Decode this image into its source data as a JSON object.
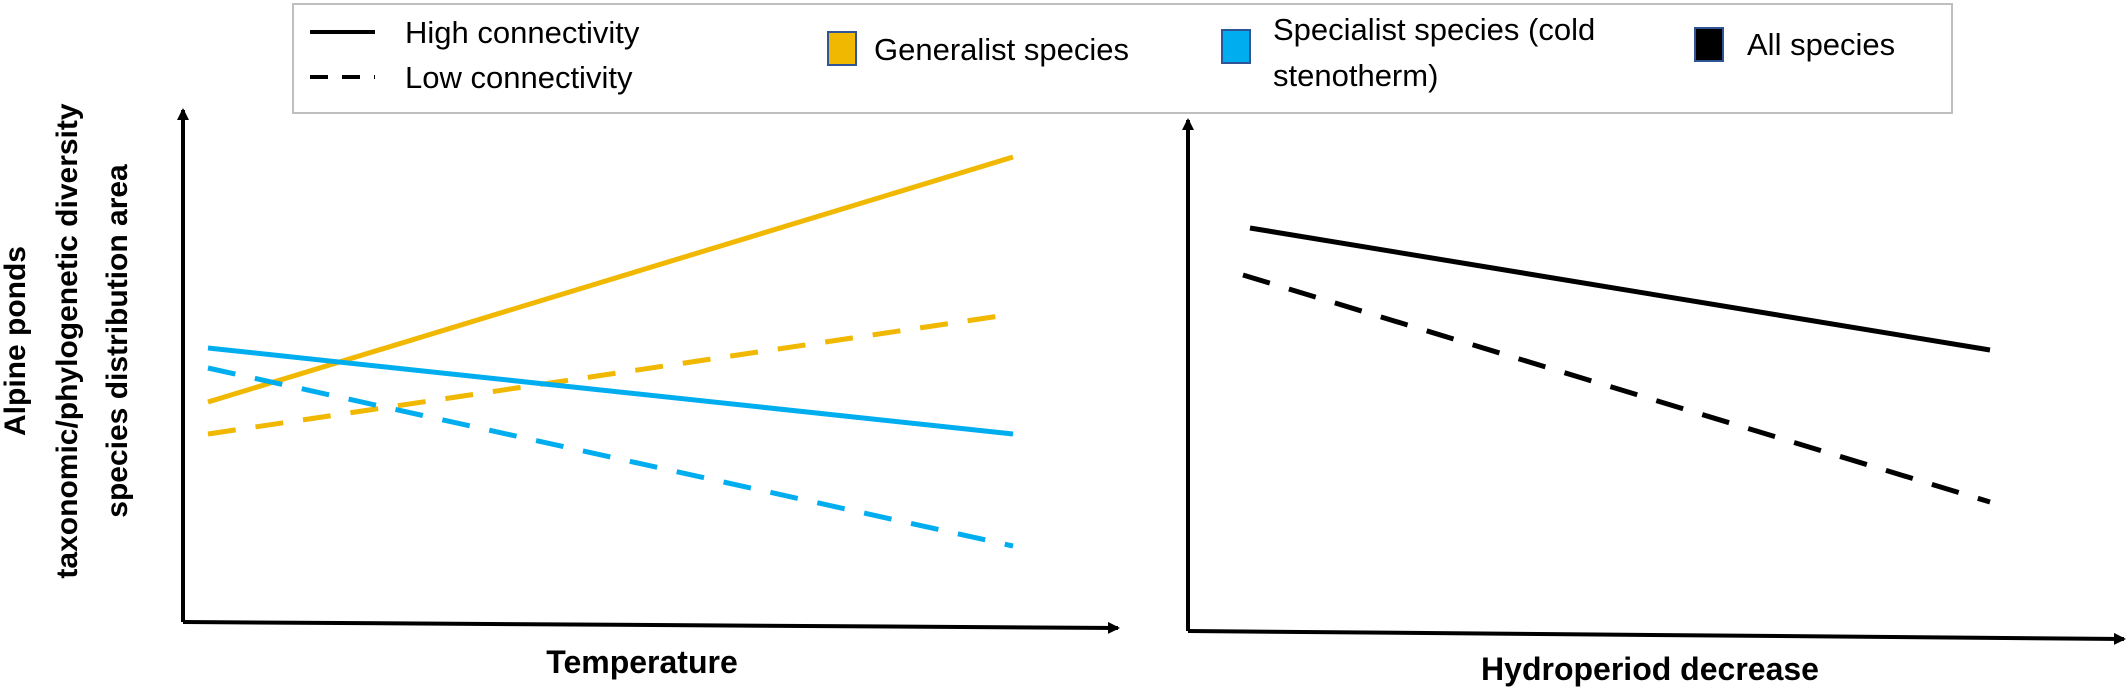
{
  "legend": {
    "high_connectivity": "High connectivity",
    "low_connectivity": "Low connectivity",
    "generalist": "Generalist species",
    "specialist_line1": "Specialist species (cold",
    "specialist_line2": "stenotherm)",
    "all_species": "All species"
  },
  "colors": {
    "generalist": "#F0B800",
    "specialist": "#00AEEF",
    "all_species": "#000000"
  },
  "y_axis_title": {
    "line1": "Alpine ponds",
    "line2": "taxonomic/phylogenetic diversity",
    "line3": "species distribution area"
  },
  "panels": [
    {
      "x_axis_title": "Temperature",
      "lines": [
        {
          "group": "generalist",
          "connectivity": "high",
          "trend": "increase"
        },
        {
          "group": "generalist",
          "connectivity": "low",
          "trend": "increase"
        },
        {
          "group": "specialist",
          "connectivity": "high",
          "trend": "decrease"
        },
        {
          "group": "specialist",
          "connectivity": "low",
          "trend": "decrease"
        }
      ]
    },
    {
      "x_axis_title": "Hydroperiod decrease",
      "lines": [
        {
          "group": "all_species",
          "connectivity": "high",
          "trend": "decrease"
        },
        {
          "group": "all_species",
          "connectivity": "low",
          "trend": "decrease"
        }
      ]
    }
  ]
}
